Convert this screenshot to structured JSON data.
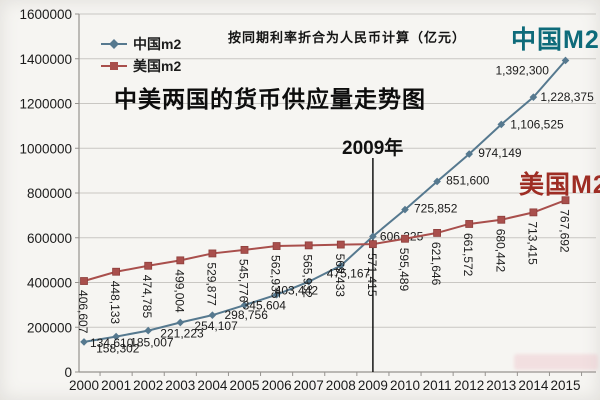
{
  "chart_data": {
    "type": "line",
    "title": "中美两国的货币供应量走势图",
    "subtitle": "按同期利率折合为人民币计算（亿元）",
    "annotation": {
      "label": "2009年",
      "year": "2009"
    },
    "categories": [
      "2000",
      "2001",
      "2002",
      "2003",
      "2004",
      "2005",
      "2006",
      "2007",
      "2008",
      "2009",
      "2010",
      "2011",
      "2012",
      "2013",
      "2014",
      "2015"
    ],
    "ylim": [
      0,
      1600000
    ],
    "ytick_interval": 200000,
    "yticks": [
      "1600000",
      "1400000",
      "1200000",
      "1000000",
      "800000",
      "600000",
      "400000",
      "200000",
      "0"
    ],
    "grid": "horizontal",
    "legend_position": "top-left-inside",
    "colors": {
      "grid": "#c9c7c3",
      "axis": "#96938f",
      "label_text": "#1b1b1b"
    },
    "series": [
      {
        "name": "中国m2",
        "callout": "中国M2",
        "callout_color": "#0e6b7a",
        "color": "#56798f",
        "marker": "diamond",
        "values": [
          134610,
          158302,
          185007,
          221223,
          254107,
          298756,
          345604,
          403442,
          475167,
          606225,
          725852,
          851600,
          974149,
          1106525,
          1228375,
          1392300
        ]
      },
      {
        "name": "美国m2",
        "callout": "美国M2",
        "callout_color": "#9e2d24",
        "color": "#a94f4c",
        "marker": "square",
        "values": [
          406607,
          448133,
          474785,
          499004,
          529877,
          545776,
          562935,
          565932,
          569433,
          571415,
          595489,
          621646,
          661572,
          680442,
          713415,
          767692
        ]
      }
    ]
  }
}
